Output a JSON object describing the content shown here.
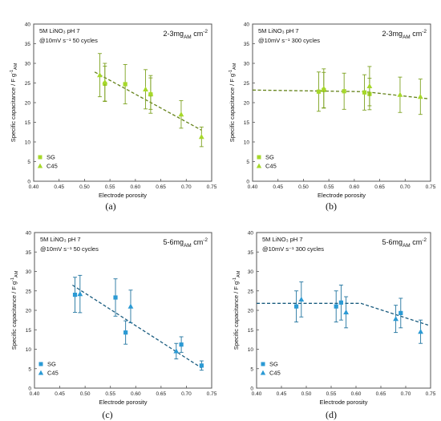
{
  "chart_data": [
    {
      "panel": "(a)",
      "type": "scatter",
      "color": "#a6d82a",
      "annotation_lines": [
        "5M LiNO₃   pH 7",
        "@10mV s⁻¹   50 cycles"
      ],
      "loading_text": {
        "base": "2-3mg",
        "sub": "AM",
        "tail": " cm",
        "sup": "-2"
      },
      "ylabel": {
        "base": "Specific capacitance / F g",
        "sup": "-1",
        "sub": "AM"
      },
      "xlabel": "Electrode porosity",
      "xlim": [
        0.4,
        0.75
      ],
      "ylim": [
        0,
        40
      ],
      "xticks": [
        "0.40",
        "0.45",
        "0.50",
        "0.55",
        "0.60",
        "0.65",
        "0.70",
        "0.75"
      ],
      "yticks": [
        "0",
        "5",
        "10",
        "15",
        "20",
        "25",
        "30",
        "35",
        "40"
      ],
      "grid": false,
      "legend_position": "bottom-left",
      "series": [
        {
          "name": "SG",
          "marker": "square",
          "points": [
            {
              "x": 0.54,
              "y": 24.8,
              "err": 4.5
            },
            {
              "x": 0.58,
              "y": 24.7,
              "err": 5.0
            },
            {
              "x": 0.63,
              "y": 22.1,
              "err": 4.8
            }
          ]
        },
        {
          "name": "C45",
          "marker": "triangle",
          "points": [
            {
              "x": 0.53,
              "y": 27.0,
              "err": 5.5
            },
            {
              "x": 0.54,
              "y": 25.2,
              "err": 4.8
            },
            {
              "x": 0.62,
              "y": 23.4,
              "err": 5.0
            },
            {
              "x": 0.63,
              "y": 22.3,
              "err": 4.0
            },
            {
              "x": 0.69,
              "y": 17.0,
              "err": 3.5
            },
            {
              "x": 0.73,
              "y": 11.3,
              "err": 2.5
            }
          ]
        }
      ],
      "trendline": {
        "style": "dashed",
        "points": [
          [
            0.52,
            27.8
          ],
          [
            0.73,
            13.0
          ]
        ]
      }
    },
    {
      "panel": "(b)",
      "type": "scatter",
      "color": "#a6d82a",
      "annotation_lines": [
        "5M LiNO₃   pH 7",
        "@10mV s⁻¹   300 cycles"
      ],
      "loading_text": {
        "base": "2-3mg",
        "sub": "AM",
        "tail": " cm",
        "sup": "-2"
      },
      "ylabel": {
        "base": "Specific capacitance / F g",
        "sup": "-1",
        "sub": "AM"
      },
      "xlabel": "Electrode porosity",
      "xlim": [
        0.4,
        0.75
      ],
      "ylim": [
        0,
        40
      ],
      "xticks": [
        "0.40",
        "0.45",
        "0.50",
        "0.55",
        "0.60",
        "0.65",
        "0.70",
        "0.75"
      ],
      "yticks": [
        "0",
        "5",
        "10",
        "15",
        "20",
        "25",
        "30",
        "35",
        "40"
      ],
      "grid": false,
      "legend_position": "bottom-left",
      "series": [
        {
          "name": "SG",
          "marker": "square",
          "points": [
            {
              "x": 0.53,
              "y": 22.8,
              "err": 5.0
            },
            {
              "x": 0.54,
              "y": 23.2,
              "err": 4.5
            },
            {
              "x": 0.58,
              "y": 22.9,
              "err": 4.6
            },
            {
              "x": 0.62,
              "y": 22.6,
              "err": 4.5
            },
            {
              "x": 0.63,
              "y": 22.2,
              "err": 4.0
            }
          ]
        },
        {
          "name": "C45",
          "marker": "triangle",
          "points": [
            {
              "x": 0.54,
              "y": 23.6,
              "err": 5.0
            },
            {
              "x": 0.63,
              "y": 24.2,
              "err": 5.0
            },
            {
              "x": 0.69,
              "y": 22.0,
              "err": 4.5
            },
            {
              "x": 0.73,
              "y": 21.5,
              "err": 4.5
            }
          ]
        }
      ],
      "trendline": {
        "style": "dashed",
        "points": [
          [
            0.4,
            23.2
          ],
          [
            0.62,
            22.8
          ],
          [
            0.745,
            21.0
          ]
        ]
      }
    },
    {
      "panel": "(c)",
      "type": "scatter",
      "color": "#2b9ad4",
      "annotation_lines": [
        "5M LiNO₃   pH 7",
        "@10mV s⁻¹   50 cycles"
      ],
      "loading_text": {
        "base": "5-6mg",
        "sub": "AM",
        "tail": " cm",
        "sup": "-2"
      },
      "ylabel": {
        "base": "Specific capacitance / F g",
        "sup": "-1",
        "sub": "AM"
      },
      "xlabel": "Electrode porosity",
      "xlim": [
        0.4,
        0.75
      ],
      "ylim": [
        0,
        40
      ],
      "xticks": [
        "0.40",
        "0.45",
        "0.50",
        "0.55",
        "0.60",
        "0.65",
        "0.70",
        "0.75"
      ],
      "yticks": [
        "0",
        "5",
        "10",
        "15",
        "20",
        "25",
        "30",
        "35",
        "40"
      ],
      "grid": false,
      "legend_position": "bottom-left",
      "series": [
        {
          "name": "SG",
          "marker": "square",
          "points": [
            {
              "x": 0.48,
              "y": 24.0,
              "err": 4.5
            },
            {
              "x": 0.56,
              "y": 23.3,
              "err": 4.8
            },
            {
              "x": 0.58,
              "y": 14.3,
              "err": 3.0
            },
            {
              "x": 0.69,
              "y": 11.2,
              "err": 2.0
            },
            {
              "x": 0.73,
              "y": 5.8,
              "err": 1.2
            }
          ]
        },
        {
          "name": "C45",
          "marker": "triangle",
          "points": [
            {
              "x": 0.49,
              "y": 24.2,
              "err": 4.8
            },
            {
              "x": 0.59,
              "y": 21.0,
              "err": 4.2
            },
            {
              "x": 0.68,
              "y": 9.5,
              "err": 2.0
            }
          ]
        }
      ],
      "trendline": {
        "style": "dashed",
        "points": [
          [
            0.475,
            26.5
          ],
          [
            0.73,
            5.2
          ]
        ]
      }
    },
    {
      "panel": "(d)",
      "type": "scatter",
      "color": "#2b9ad4",
      "annotation_lines": [
        "5M LiNO₃   pH 7",
        "@10mV s⁻¹   300 cycles"
      ],
      "loading_text": {
        "base": "5-6mg",
        "sub": "AM",
        "tail": " cm",
        "sup": "-2"
      },
      "ylabel": {
        "base": "Specific capacitance / F g",
        "sup": "-1",
        "sub": "AM"
      },
      "xlabel": "Electrode porosity",
      "xlim": [
        0.4,
        0.75
      ],
      "ylim": [
        0,
        40
      ],
      "xticks": [
        "0.40",
        "0.45",
        "0.50",
        "0.55",
        "0.60",
        "0.65",
        "0.70",
        "0.75"
      ],
      "yticks": [
        "0",
        "5",
        "10",
        "15",
        "20",
        "25",
        "30",
        "35",
        "40"
      ],
      "grid": false,
      "legend_position": "bottom-left",
      "series": [
        {
          "name": "SG",
          "marker": "square",
          "points": [
            {
              "x": 0.48,
              "y": 21.0,
              "err": 4.0
            },
            {
              "x": 0.56,
              "y": 21.0,
              "err": 4.0
            },
            {
              "x": 0.57,
              "y": 22.0,
              "err": 4.5
            },
            {
              "x": 0.69,
              "y": 19.3,
              "err": 3.8
            }
          ]
        },
        {
          "name": "C45",
          "marker": "triangle",
          "points": [
            {
              "x": 0.49,
              "y": 22.8,
              "err": 4.5
            },
            {
              "x": 0.58,
              "y": 19.5,
              "err": 4.0
            },
            {
              "x": 0.68,
              "y": 17.8,
              "err": 3.5
            },
            {
              "x": 0.73,
              "y": 14.5,
              "err": 3.0
            }
          ]
        }
      ],
      "trendline": {
        "style": "dashed",
        "points": [
          [
            0.4,
            21.8
          ],
          [
            0.61,
            21.8
          ],
          [
            0.745,
            16.2
          ]
        ]
      }
    }
  ]
}
